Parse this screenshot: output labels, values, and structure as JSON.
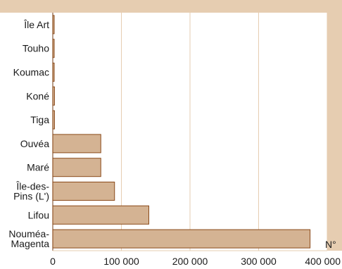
{
  "colors": {
    "frame": "#e6cdb1",
    "bar_fill": "#d4b393",
    "bar_stroke": "#8a4a1a",
    "grid": "#e6cdb1"
  },
  "chart_data": {
    "type": "bar",
    "orientation": "horizontal",
    "categories": [
      "Île Art",
      "Touho",
      "Koumac",
      "Koné",
      "Tiga",
      "Ouvéa",
      "Maré",
      "Île-des-Pins (L')",
      "Lifou",
      "Nouméa-Magenta"
    ],
    "category_lines": [
      [
        "Île Art"
      ],
      [
        "Touho"
      ],
      [
        "Koumac"
      ],
      [
        "Koné"
      ],
      [
        "Tiga"
      ],
      [
        "Ouvéa"
      ],
      [
        "Maré"
      ],
      [
        "Île-des-",
        "Pins (L')"
      ],
      [
        "Lifou"
      ],
      [
        "Nouméa-",
        "Magenta"
      ]
    ],
    "values": [
      1500,
      1500,
      2000,
      2500,
      2500,
      70000,
      70000,
      90000,
      140000,
      375000
    ],
    "xlim": [
      0,
      400000
    ],
    "xticks": [
      0,
      100000,
      200000,
      300000,
      400000
    ],
    "xtick_labels": [
      "0",
      "100 000",
      "200 000",
      "300 000",
      "400 000"
    ],
    "x_unit_label": "N°",
    "grid": true,
    "legend": "none"
  }
}
